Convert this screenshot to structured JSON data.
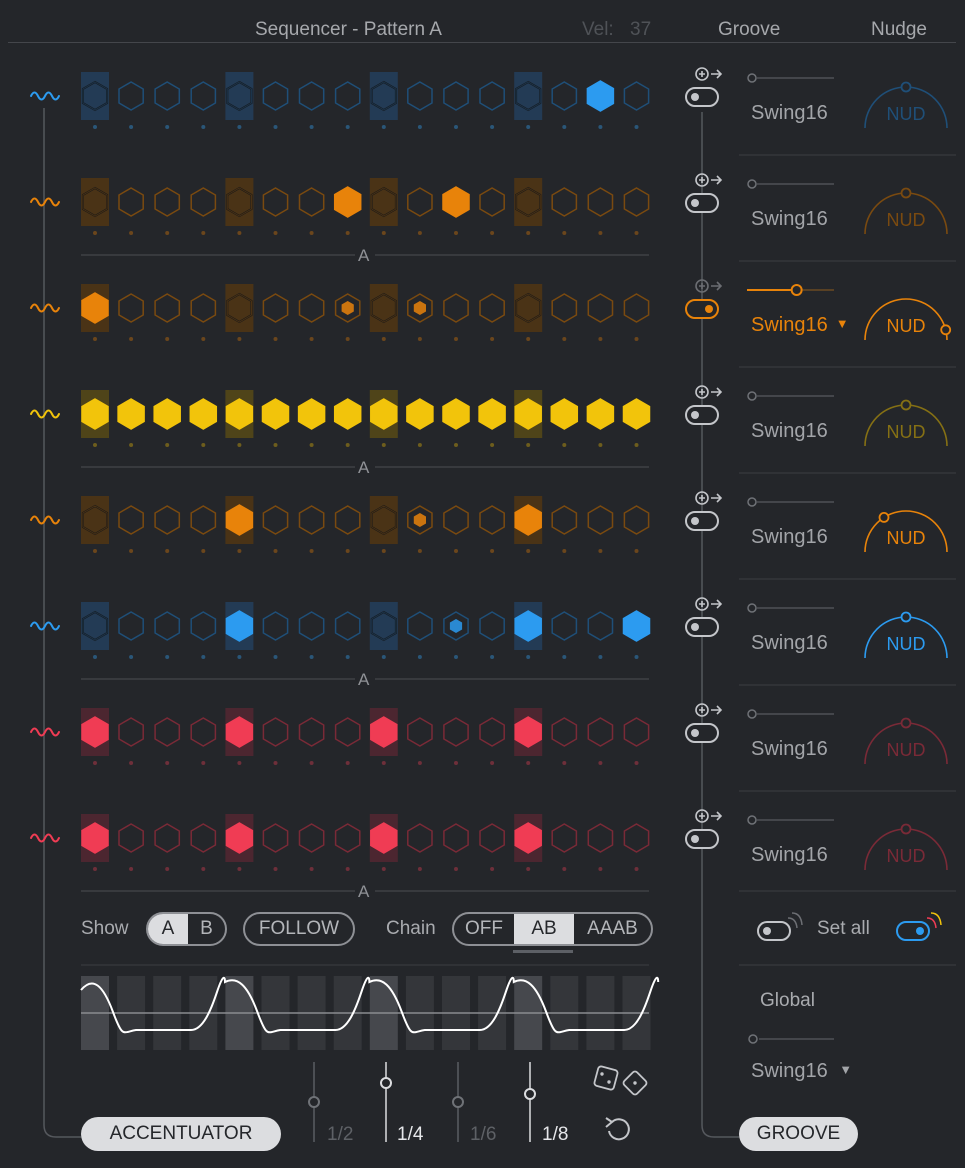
{
  "header": {
    "title": "Sequencer - Pattern A",
    "vel_label": "Vel:",
    "vel_value": "37",
    "groove_label": "Groove",
    "nudge_label": "Nudge"
  },
  "colors": {
    "blue": "#2c9bf0",
    "orange": "#e8830a",
    "yellow": "#f2c40b",
    "red": "#f03c54",
    "background": "#24262a"
  },
  "tracks": [
    {
      "color": "blue",
      "steps": [
        0,
        0,
        0,
        0,
        0,
        0,
        0,
        0,
        0,
        0,
        0,
        0,
        0,
        0,
        2,
        0
      ],
      "swing": "Swing16",
      "nudge": "NUD",
      "nudge_value": 0.5,
      "nudge_active": false,
      "groove_on": false
    },
    {
      "color": "orange",
      "steps": [
        0,
        0,
        0,
        0,
        0,
        0,
        0,
        2,
        0,
        0,
        2,
        0,
        0,
        0,
        0,
        0
      ],
      "swing": "Swing16",
      "nudge": "NUD",
      "nudge_value": 0.5,
      "nudge_active": false,
      "groove_on": false
    },
    {
      "color": "orange",
      "steps": [
        2,
        0,
        0,
        0,
        0,
        0,
        0,
        1,
        0,
        1,
        0,
        0,
        0,
        0,
        0,
        0
      ],
      "swing": "Swing16",
      "nudge": "NUD",
      "nudge_value": 0.92,
      "nudge_active": true,
      "groove_on": true,
      "swing_value": 0.52
    },
    {
      "color": "yellow",
      "steps": [
        2,
        2,
        2,
        2,
        2,
        2,
        2,
        2,
        2,
        2,
        2,
        2,
        2,
        2,
        2,
        2
      ],
      "swing": "Swing16",
      "nudge": "NUD",
      "nudge_value": 0.5,
      "nudge_active": false,
      "groove_on": false
    },
    {
      "color": "orange",
      "steps": [
        0,
        0,
        0,
        0,
        2,
        0,
        0,
        0,
        0,
        1,
        0,
        0,
        2,
        0,
        0,
        0
      ],
      "swing": "Swing16",
      "nudge": "NUD",
      "nudge_value": 0.32,
      "nudge_active": true,
      "groove_on": false
    },
    {
      "color": "blue",
      "steps": [
        0,
        0,
        0,
        0,
        2,
        0,
        0,
        0,
        0,
        0,
        1,
        0,
        2,
        0,
        0,
        2
      ],
      "swing": "Swing16",
      "nudge": "NUD",
      "nudge_value": 0.5,
      "nudge_active": true,
      "groove_on": false
    },
    {
      "color": "red",
      "steps": [
        2,
        0,
        0,
        0,
        2,
        0,
        0,
        0,
        2,
        0,
        0,
        0,
        2,
        0,
        0,
        0
      ],
      "swing": "Swing16",
      "nudge": "NUD",
      "nudge_value": 0.5,
      "nudge_active": false,
      "groove_on": false
    },
    {
      "color": "red",
      "steps": [
        2,
        0,
        0,
        0,
        2,
        0,
        0,
        0,
        2,
        0,
        0,
        0,
        2,
        0,
        0,
        0
      ],
      "swing": "Swing16",
      "nudge": "NUD",
      "nudge_value": 0.5,
      "nudge_active": false,
      "groove_on": false
    }
  ],
  "pattern_labels": [
    "A",
    "A",
    "A",
    "A"
  ],
  "controls": {
    "show_label": "Show",
    "show_options": [
      "A",
      "B"
    ],
    "show_selected": "A",
    "follow_label": "FOLLOW",
    "chain_label": "Chain",
    "chain_options": [
      "OFF",
      "AB",
      "AAAB"
    ],
    "chain_selected": "AB",
    "set_all_label": "Set all",
    "global_label": "Global",
    "global_swing": "Swing16"
  },
  "rate": {
    "options": [
      "1/2",
      "1/4",
      "1/6",
      "1/8"
    ],
    "active": [
      "1/4",
      "1/8"
    ]
  },
  "footer": {
    "accentuator_label": "ACCENTUATOR",
    "groove_label": "GROOVE"
  }
}
